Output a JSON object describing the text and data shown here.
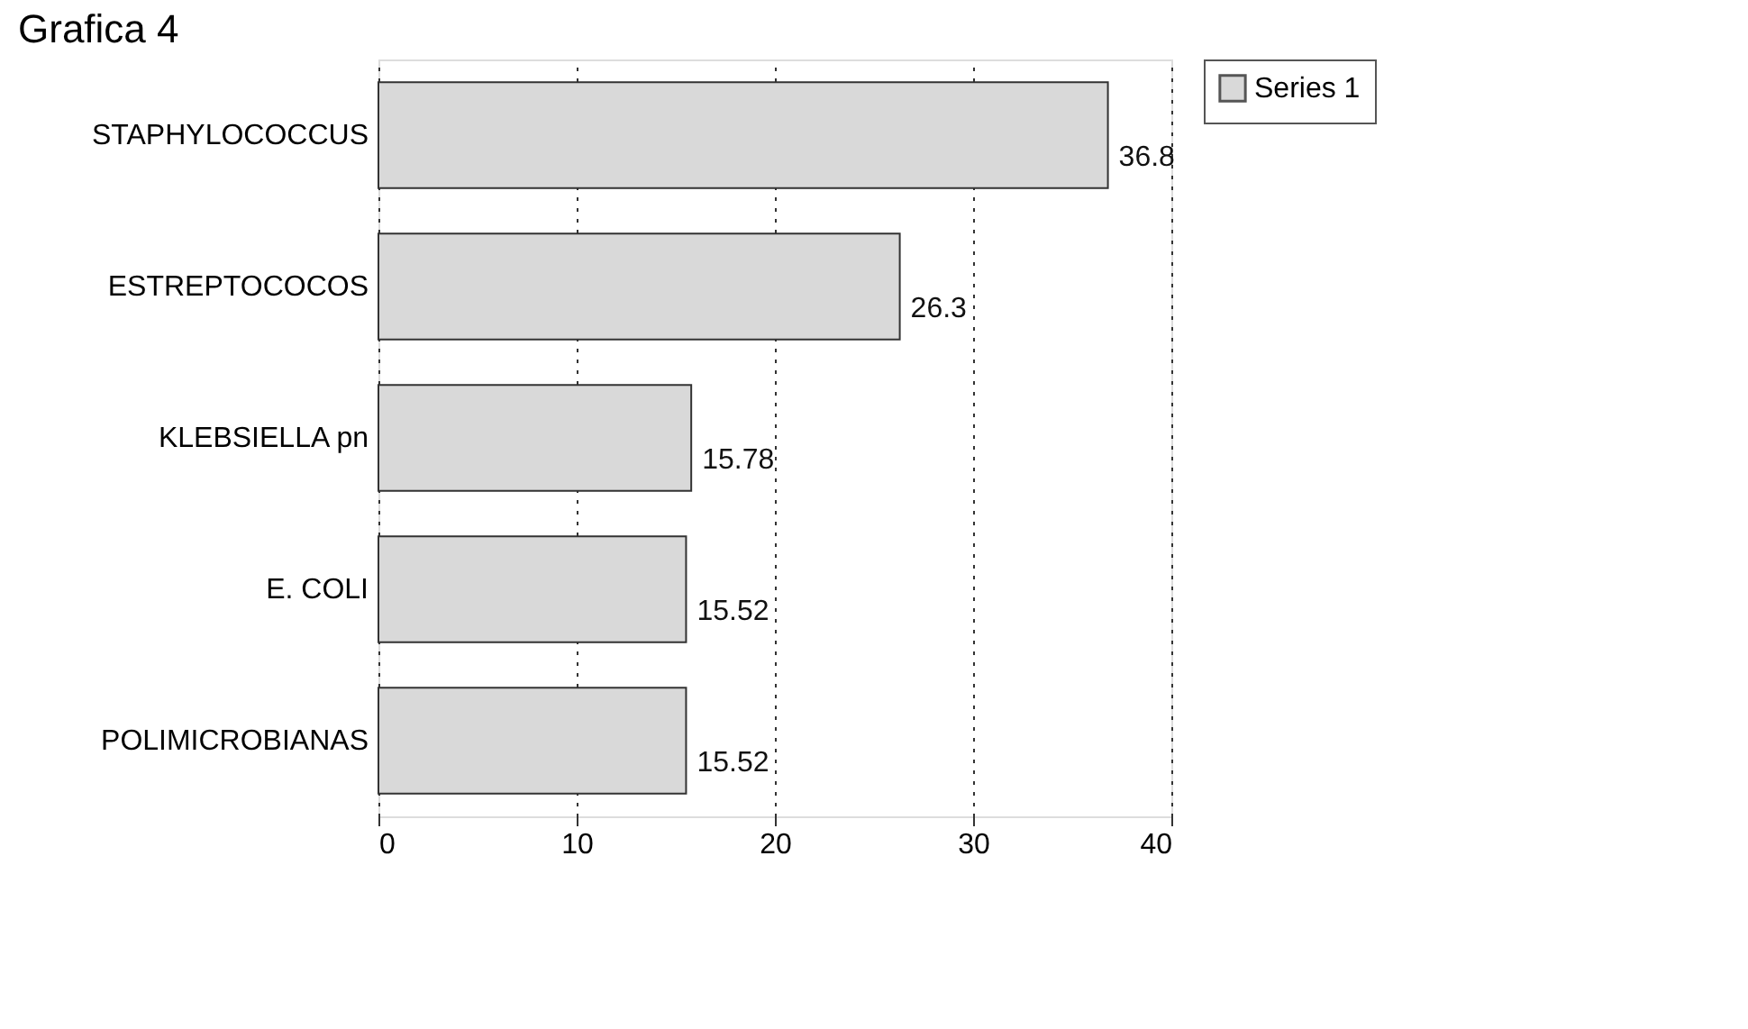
{
  "chart_data": {
    "type": "bar",
    "orientation": "horizontal",
    "title": "Grafica 4",
    "categories": [
      "STAPHYLOCOCCUS",
      "ESTREPTOCOCOS",
      "KLEBSIELLA pn",
      "E. COLI",
      "POLIMICROBIANAS"
    ],
    "series": [
      {
        "name": "Series 1",
        "color": "#d9d9d9",
        "values": [
          36.8,
          26.3,
          15.78,
          15.52,
          15.52
        ]
      }
    ],
    "xlim": [
      0,
      40
    ],
    "xticks": [
      0,
      10,
      20,
      30,
      40
    ],
    "grid": "x",
    "legend": "right",
    "data_labels": true
  }
}
